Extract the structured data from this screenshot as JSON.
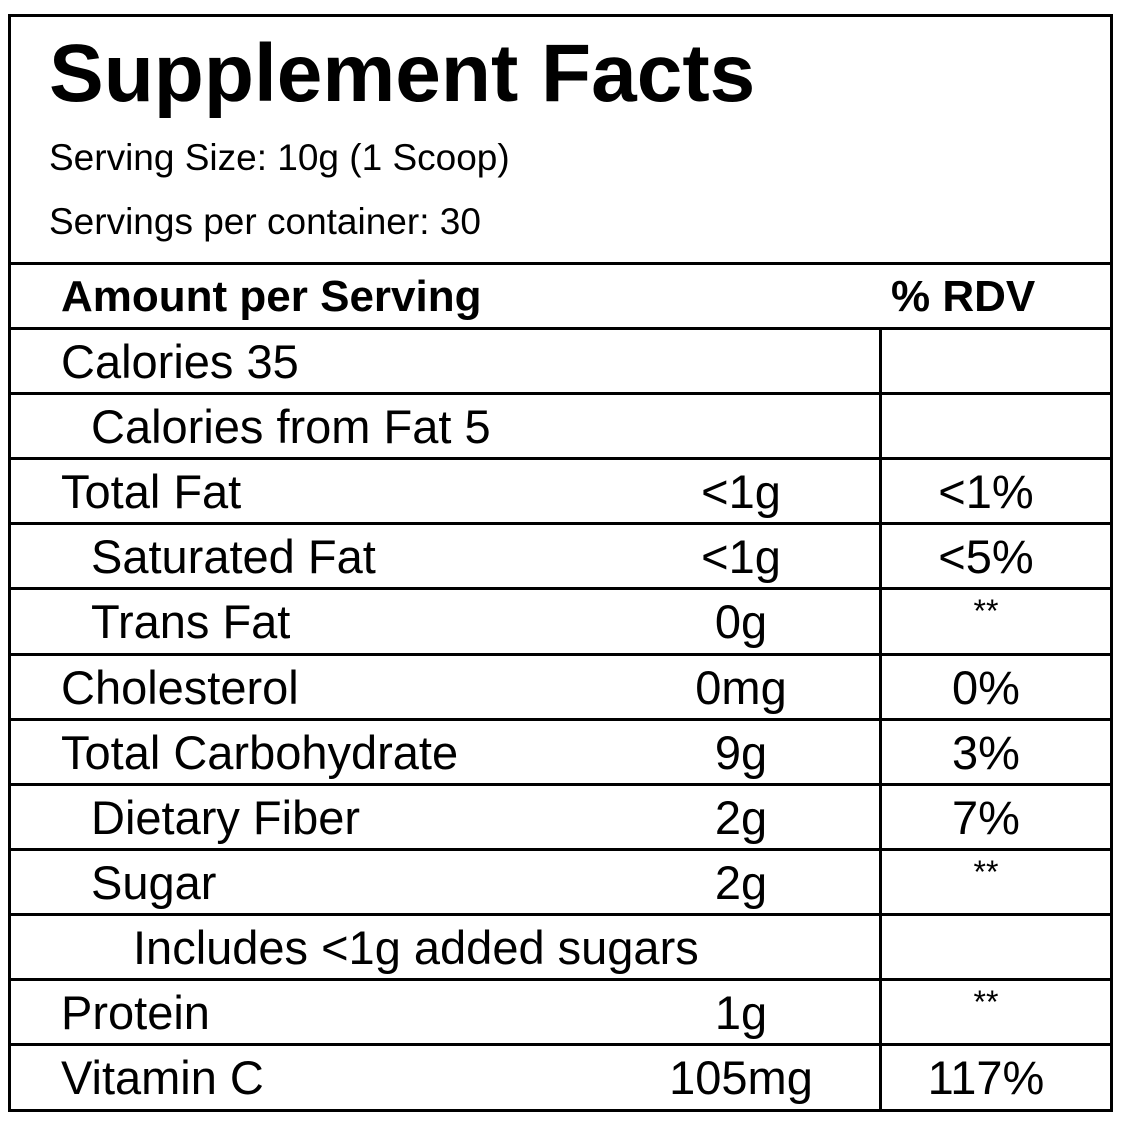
{
  "title": "Supplement Facts",
  "serving_size": "Serving Size: 10g (1 Scoop)",
  "servings_per_container": "Servings per container: 30",
  "header": {
    "amount": "Amount per Serving",
    "rdv": "% RDV"
  },
  "rows": [
    {
      "name": "Calories 35",
      "amount": "",
      "rdv": "",
      "indent": 0
    },
    {
      "name": "Calories from Fat 5",
      "amount": "",
      "rdv": "",
      "indent": 1
    },
    {
      "name": "Total Fat",
      "amount": "<1g",
      "rdv": "<1%",
      "indent": 0
    },
    {
      "name": "Saturated Fat",
      "amount": "<1g",
      "rdv": "<5%",
      "indent": 1
    },
    {
      "name": "Trans Fat",
      "amount": "0g",
      "rdv": "**",
      "indent": 1
    },
    {
      "name": "Cholesterol",
      "amount": "0mg",
      "rdv": "0%",
      "indent": 0
    },
    {
      "name": "Total Carbohydrate",
      "amount": "9g",
      "rdv": "3%",
      "indent": 0
    },
    {
      "name": "Dietary Fiber",
      "amount": "2g",
      "rdv": "7%",
      "indent": 1
    },
    {
      "name": "Sugar",
      "amount": "2g",
      "rdv": "**",
      "indent": 1
    },
    {
      "name": "Includes <1g added sugars",
      "amount": "",
      "rdv": "",
      "indent": 2
    },
    {
      "name": "Protein",
      "amount": "1g",
      "rdv": "**",
      "indent": 0
    },
    {
      "name": "Vitamin C",
      "amount": "105mg",
      "rdv": "117%",
      "indent": 0
    }
  ]
}
